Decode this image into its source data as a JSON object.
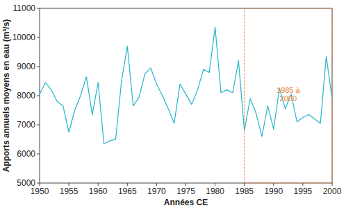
{
  "chart_data": {
    "type": "line",
    "x_label": "Années CE",
    "y_label": "Apports annuels moyens en eau (m³/s)",
    "x": [
      1950,
      1951,
      1952,
      1953,
      1954,
      1955,
      1956,
      1957,
      1958,
      1959,
      1960,
      1961,
      1962,
      1963,
      1964,
      1965,
      1966,
      1967,
      1968,
      1969,
      1970,
      1971,
      1972,
      1973,
      1974,
      1975,
      1976,
      1977,
      1978,
      1979,
      1980,
      1981,
      1982,
      1983,
      1984,
      1985,
      1986,
      1987,
      1988,
      1989,
      1990,
      1991,
      1992,
      1993,
      1994,
      1995,
      1996,
      1997,
      1998,
      1999,
      2000
    ],
    "values": [
      8050,
      8450,
      8200,
      7800,
      7650,
      6750,
      7500,
      8000,
      8650,
      7350,
      8450,
      6350,
      6450,
      6500,
      8500,
      9700,
      7650,
      7950,
      8750,
      8950,
      8400,
      8000,
      7550,
      7050,
      8400,
      8050,
      7700,
      8200,
      8900,
      8800,
      10350,
      8100,
      8200,
      8100,
      9200,
      6800,
      7900,
      7400,
      6600,
      7650,
      6850,
      8250,
      7550,
      8050,
      7100,
      7250,
      7350,
      7200,
      7050,
      9350,
      7900
    ],
    "color": "#22b5c9",
    "xlim": [
      1950,
      2000
    ],
    "ylim": [
      5000,
      11000
    ],
    "xticks": [
      1950,
      1955,
      1960,
      1965,
      1970,
      1975,
      1980,
      1985,
      1990,
      1995,
      2000
    ],
    "yticks": [
      5000,
      6000,
      7000,
      8000,
      9000,
      10000,
      11000
    ],
    "grid": false,
    "annotations": [
      {
        "text": "1985 à 2000",
        "x": [
          1985,
          2000
        ],
        "y": [
          5000,
          11000
        ],
        "color": "#e8803a",
        "line_style": "dashed"
      }
    ]
  }
}
